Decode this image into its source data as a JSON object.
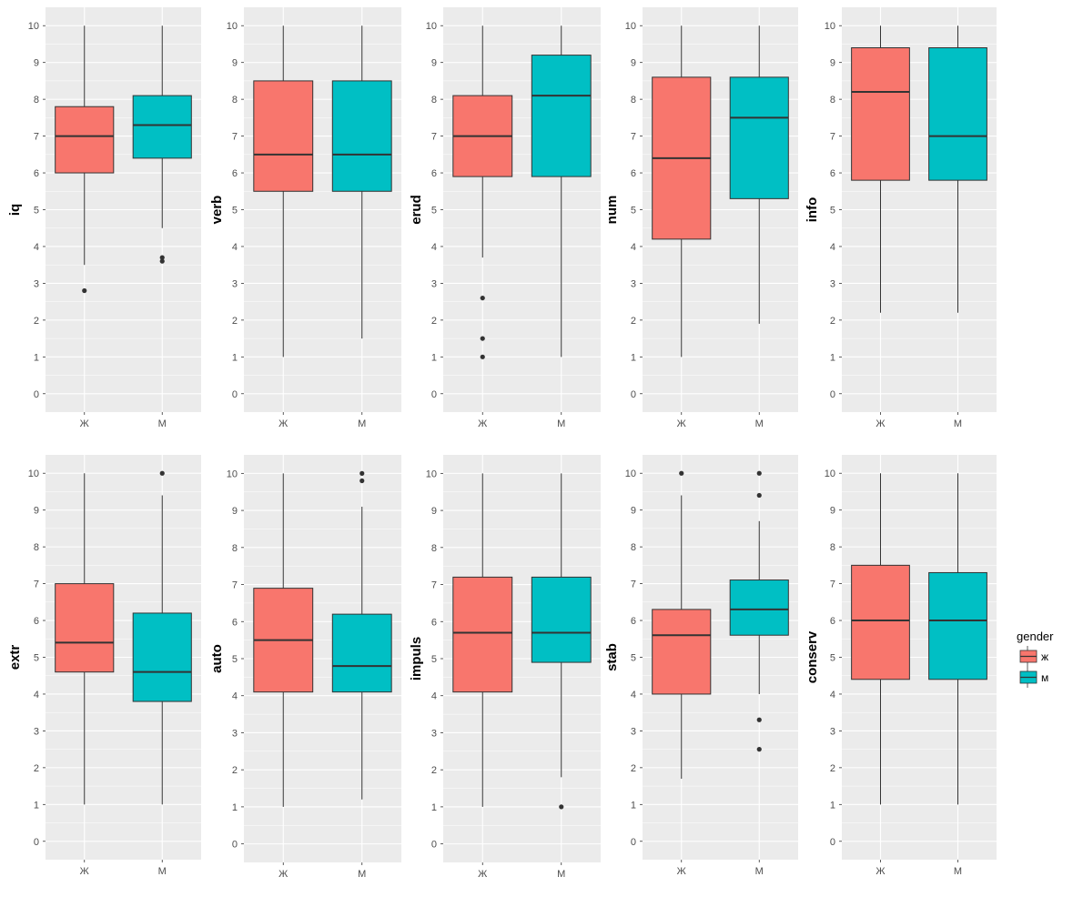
{
  "legend": {
    "title": "gender",
    "items": [
      {
        "label": "ж",
        "color": "#F8766D"
      },
      {
        "label": "м",
        "color": "#00BFC4"
      }
    ]
  },
  "colors": {
    "panel_bg": "#EBEBEB",
    "grid": "#FFFFFF",
    "outline": "#333333"
  },
  "chart_data": [
    {
      "type": "box",
      "ylabel": "iq",
      "categories": [
        "Ж",
        "М"
      ],
      "yticks": [
        0,
        1,
        2,
        3,
        4,
        5,
        6,
        7,
        8,
        9,
        10
      ],
      "boxes": [
        {
          "min": 3.5,
          "q1": 6.0,
          "median": 7.0,
          "q3": 7.8,
          "max": 10,
          "outliers": [
            2.8
          ]
        },
        {
          "min": 4.5,
          "q1": 6.4,
          "median": 7.3,
          "q3": 8.1,
          "max": 10,
          "outliers": [
            3.6,
            3.7
          ]
        }
      ]
    },
    {
      "type": "box",
      "ylabel": "verb",
      "categories": [
        "Ж",
        "М"
      ],
      "yticks": [
        0,
        1,
        2,
        3,
        4,
        5,
        6,
        7,
        8,
        9,
        10
      ],
      "boxes": [
        {
          "min": 1.0,
          "q1": 5.5,
          "median": 6.5,
          "q3": 8.5,
          "max": 10,
          "outliers": []
        },
        {
          "min": 1.5,
          "q1": 5.5,
          "median": 6.5,
          "q3": 8.5,
          "max": 10,
          "outliers": []
        }
      ]
    },
    {
      "type": "box",
      "ylabel": "erud",
      "categories": [
        "Ж",
        "М"
      ],
      "yticks": [
        0,
        1,
        2,
        3,
        4,
        5,
        6,
        7,
        8,
        9,
        10
      ],
      "boxes": [
        {
          "min": 3.7,
          "q1": 5.9,
          "median": 7.0,
          "q3": 8.1,
          "max": 10,
          "outliers": [
            1.0,
            1.5,
            2.6
          ]
        },
        {
          "min": 1.0,
          "q1": 5.9,
          "median": 8.1,
          "q3": 9.2,
          "max": 10,
          "outliers": []
        }
      ]
    },
    {
      "type": "box",
      "ylabel": "num",
      "categories": [
        "Ж",
        "М"
      ],
      "yticks": [
        0,
        1,
        2,
        3,
        4,
        5,
        6,
        7,
        8,
        9,
        10
      ],
      "boxes": [
        {
          "min": 1.0,
          "q1": 4.2,
          "median": 6.4,
          "q3": 8.6,
          "max": 10,
          "outliers": []
        },
        {
          "min": 1.9,
          "q1": 5.3,
          "median": 7.5,
          "q3": 8.6,
          "max": 10,
          "outliers": []
        }
      ]
    },
    {
      "type": "box",
      "ylabel": "info",
      "categories": [
        "Ж",
        "М"
      ],
      "yticks": [
        0,
        1,
        2,
        3,
        4,
        5,
        6,
        7,
        8,
        9,
        10
      ],
      "boxes": [
        {
          "min": 2.2,
          "q1": 5.8,
          "median": 8.2,
          "q3": 9.4,
          "max": 10,
          "outliers": []
        },
        {
          "min": 2.2,
          "q1": 5.8,
          "median": 7.0,
          "q3": 9.4,
          "max": 10,
          "outliers": []
        }
      ]
    },
    {
      "type": "box",
      "ylabel": "extr",
      "categories": [
        "Ж",
        "М"
      ],
      "yticks": [
        0,
        1,
        2,
        3,
        4,
        5,
        6,
        7,
        8,
        9,
        10
      ],
      "boxes": [
        {
          "min": 1.0,
          "q1": 4.6,
          "median": 5.4,
          "q3": 7.0,
          "max": 10,
          "outliers": []
        },
        {
          "min": 1.0,
          "q1": 3.8,
          "median": 4.6,
          "q3": 6.2,
          "max": 9.4,
          "outliers": [
            10
          ]
        }
      ]
    },
    {
      "type": "box",
      "ylabel": "auto",
      "categories": [
        "Ж",
        "М"
      ],
      "yticks": [
        0,
        1,
        2,
        3,
        4,
        5,
        6,
        7,
        8,
        9,
        10
      ],
      "boxes": [
        {
          "min": 1.0,
          "q1": 4.1,
          "median": 5.5,
          "q3": 6.9,
          "max": 10,
          "outliers": []
        },
        {
          "min": 1.2,
          "q1": 4.1,
          "median": 4.8,
          "q3": 6.2,
          "max": 9.1,
          "outliers": [
            9.8,
            10
          ]
        }
      ]
    },
    {
      "type": "box",
      "ylabel": "impuls",
      "categories": [
        "Ж",
        "М"
      ],
      "yticks": [
        0,
        1,
        2,
        3,
        4,
        5,
        6,
        7,
        8,
        9,
        10
      ],
      "boxes": [
        {
          "min": 1.0,
          "q1": 4.1,
          "median": 5.7,
          "q3": 7.2,
          "max": 10,
          "outliers": []
        },
        {
          "min": 1.8,
          "q1": 4.9,
          "median": 5.7,
          "q3": 7.2,
          "max": 10,
          "outliers": [
            1.0
          ]
        }
      ]
    },
    {
      "type": "box",
      "ylabel": "stab",
      "categories": [
        "Ж",
        "М"
      ],
      "yticks": [
        0,
        1,
        2,
        3,
        4,
        5,
        6,
        7,
        8,
        9,
        10
      ],
      "boxes": [
        {
          "min": 1.7,
          "q1": 4.0,
          "median": 5.6,
          "q3": 6.3,
          "max": 9.4,
          "outliers": [
            10
          ]
        },
        {
          "min": 4.0,
          "q1": 5.6,
          "median": 6.3,
          "q3": 7.1,
          "max": 8.7,
          "outliers": [
            2.5,
            3.3,
            9.4,
            10
          ]
        }
      ]
    },
    {
      "type": "box",
      "ylabel": "conserv",
      "categories": [
        "Ж",
        "М"
      ],
      "yticks": [
        0,
        1,
        2,
        3,
        4,
        5,
        6,
        7,
        8,
        9,
        10
      ],
      "boxes": [
        {
          "min": 1.0,
          "q1": 4.4,
          "median": 6.0,
          "q3": 7.5,
          "max": 10,
          "outliers": []
        },
        {
          "min": 1.0,
          "q1": 4.4,
          "median": 6.0,
          "q3": 7.3,
          "max": 10,
          "outliers": []
        }
      ]
    }
  ]
}
